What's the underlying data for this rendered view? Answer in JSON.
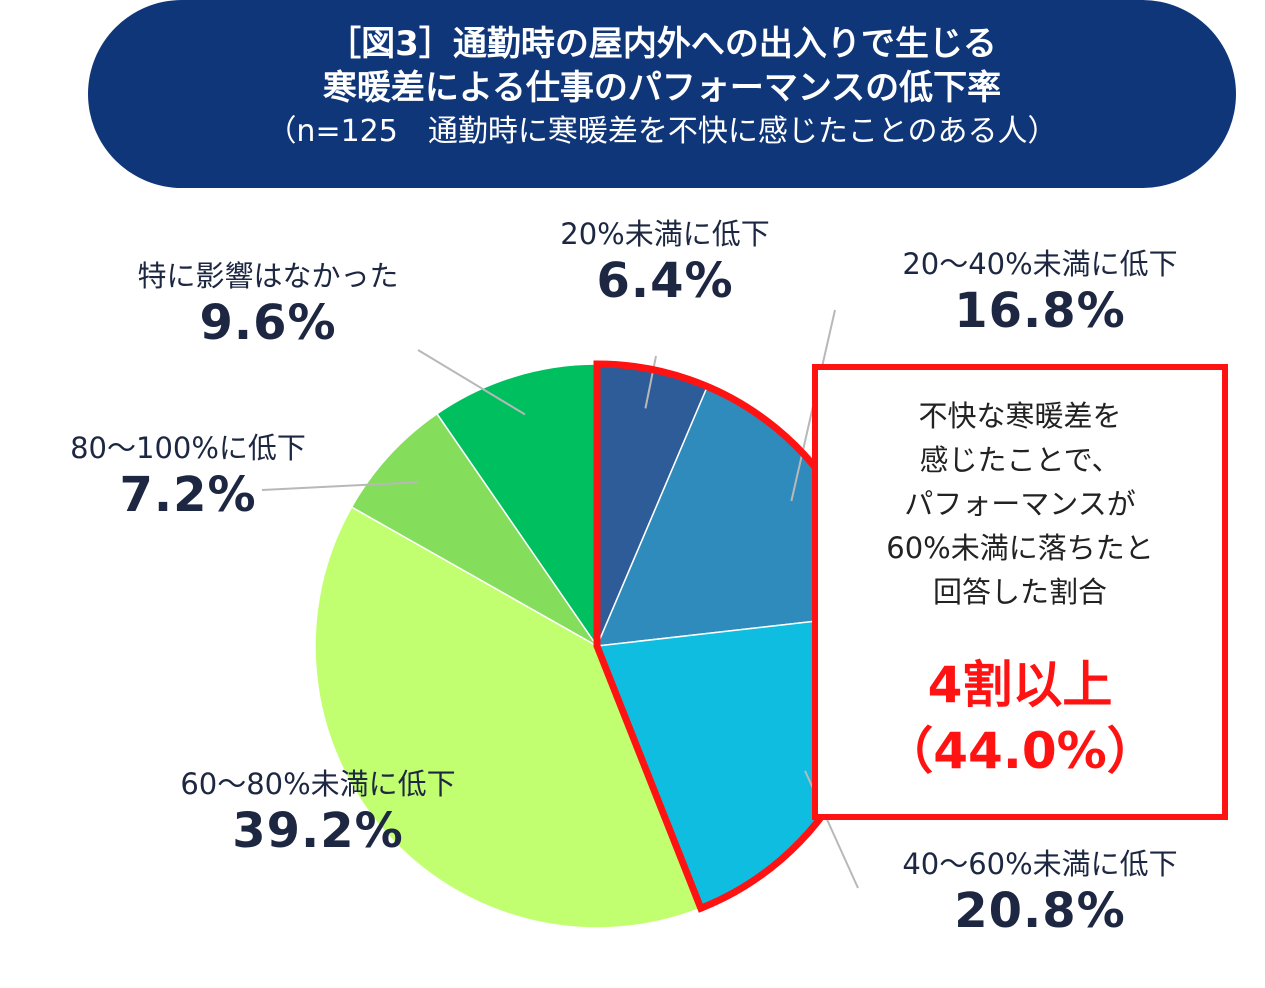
{
  "header": {
    "line1": "［図3］通勤時の屋内外への出入りで生じる",
    "line2": "寒暖差による仕事のパフォーマンスの低下率",
    "line3": "（n=125　通勤時に寒暖差を不快に感じたことのある人）"
  },
  "chart_data": {
    "type": "pie",
    "title": "［図3］通勤時の屋内外への出入りで生じる寒暖差による仕事のパフォーマンスの低下率",
    "subtitle": "（n=125　通勤時に寒暖差を不快に感じたことのある人）",
    "slices": [
      {
        "label": "20%未満に低下",
        "value": 6.4,
        "display": "6.4%",
        "color": "#2e5c98"
      },
      {
        "label": "20～40%未満に低下",
        "value": 16.8,
        "display": "16.8%",
        "color": "#2e8bbb"
      },
      {
        "label": "40～60%未満に低下",
        "value": 20.8,
        "display": "20.8%",
        "color": "#0ebde0"
      },
      {
        "label": "60～80%未満に低下",
        "value": 39.2,
        "display": "39.2%",
        "color": "#c2ff70"
      },
      {
        "label": "80～100%に低下",
        "value": 7.2,
        "display": "7.2%",
        "color": "#84de5c"
      },
      {
        "label": "特に影響はなかった",
        "value": 9.6,
        "display": "9.6%",
        "color": "#00bf5f"
      }
    ],
    "highlight": {
      "slice_indices": [
        0,
        1,
        2
      ],
      "color": "#ff1212"
    }
  },
  "callout": {
    "text_lines": [
      "不快な寒暖差を",
      "感じたことで、",
      "パフォーマンスが",
      "60%未満に落ちたと",
      "回答した割合"
    ],
    "big1": "4割以上",
    "big2": "（44.0%）"
  }
}
